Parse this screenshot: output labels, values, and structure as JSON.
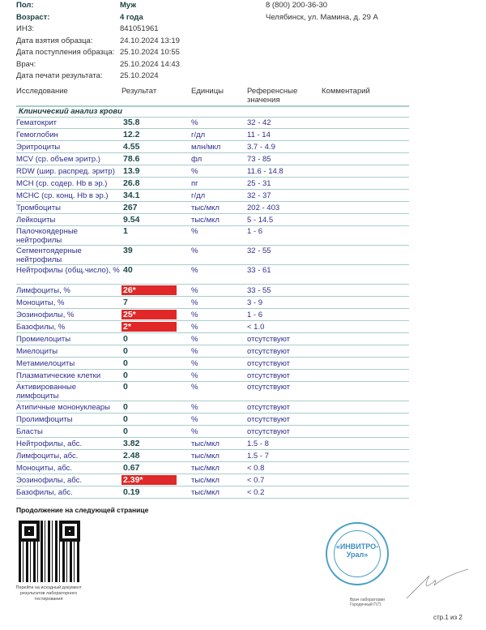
{
  "patient": [
    {
      "k": "Пол:",
      "v": "Муж",
      "bold": true
    },
    {
      "k": "Возраст:",
      "v": "4 года",
      "bold": true
    },
    {
      "k": "ИНЗ:",
      "v": "841051961"
    },
    {
      "k": "Дата взятия образца:",
      "v": "24.10.2024 13:19"
    },
    {
      "k": "Дата поступления образца:",
      "v": "25.10.2024 10:55"
    },
    {
      "k": "Врач:",
      "v": "25.10.2024 14:43"
    },
    {
      "k": "Дата печати результата:",
      "v": "25.10.2024"
    }
  ],
  "contact": {
    "phone": "8 (800) 200-36-30",
    "address": "Челябинск, ул. Мамина, д. 29 А"
  },
  "table": {
    "headers": {
      "test": "Исследование",
      "result": "Результат",
      "units": "Единицы",
      "ref": "Референсные значения",
      "comment": "Комментарий"
    },
    "section": "Клинический анализ крови",
    "flag_color": "#e02828",
    "rows": [
      {
        "name": "Гематокрит",
        "value": "35.8",
        "unit": "%",
        "ref": "32 - 42"
      },
      {
        "name": "Гемоглобин",
        "value": "12.2",
        "unit": "г/дл",
        "ref": "11 - 14"
      },
      {
        "name": "Эритроциты",
        "value": "4.55",
        "unit": "млн/мкл",
        "ref": "3.7 - 4.9"
      },
      {
        "name": "MCV (ср. объем эритр.)",
        "value": "78.6",
        "unit": "фл",
        "ref": "73 - 85"
      },
      {
        "name": "RDW (шир. распред. эритр)",
        "value": "13.9",
        "unit": "%",
        "ref": "11.6 - 14.8"
      },
      {
        "name": "MCH (ср. содер. Hb в эр.)",
        "value": "26.8",
        "unit": "пг",
        "ref": "25 - 31"
      },
      {
        "name": "MCHC (ср. конц. Hb в эр.)",
        "value": "34.1",
        "unit": "г/дл",
        "ref": "32 - 37"
      },
      {
        "name": "Тромбоциты",
        "value": "267",
        "unit": "тыс/мкл",
        "ref": "202 - 403"
      },
      {
        "name": "Лейкоциты",
        "value": "9.54",
        "unit": "тыс/мкл",
        "ref": "5 - 14.5"
      },
      {
        "name": "Палочкоядерные нейтрофилы",
        "value": "1",
        "unit": "%",
        "ref": "1 - 6",
        "wrap": true
      },
      {
        "name": "Сегментоядерные нейтрофилы",
        "value": "39",
        "unit": "%",
        "ref": "32 - 55",
        "wrap": true
      },
      {
        "name": "Нейтрофилы (общ.число), %",
        "value": "40",
        "unit": "%",
        "ref": "33 - 61",
        "wrap": true
      },
      {
        "name": "Лимфоциты, %",
        "value": "26*",
        "unit": "%",
        "ref": "33 - 55",
        "flag": true
      },
      {
        "name": "Моноциты, %",
        "value": "7",
        "unit": "%",
        "ref": "3 - 9"
      },
      {
        "name": "Эозинофилы, %",
        "value": "25*",
        "unit": "%",
        "ref": "1 - 6",
        "flag": true
      },
      {
        "name": "Базофилы, %",
        "value": "2*",
        "unit": "%",
        "ref": "< 1.0",
        "flag": true
      },
      {
        "name": "Промиелоциты",
        "value": "0",
        "unit": "%",
        "ref": "отсутствуют"
      },
      {
        "name": "Миелоциты",
        "value": "0",
        "unit": "%",
        "ref": "отсутствуют"
      },
      {
        "name": "Метамиелоциты",
        "value": "0",
        "unit": "%",
        "ref": "отсутствуют"
      },
      {
        "name": "Плазматические клетки",
        "value": "0",
        "unit": "%",
        "ref": "отсутствуют"
      },
      {
        "name": "Активированные лимфоциты",
        "value": "0",
        "unit": "%",
        "ref": "отсутствуют",
        "wrap": true
      },
      {
        "name": "Атипичные мононуклеары",
        "value": "0",
        "unit": "%",
        "ref": "отсутствуют"
      },
      {
        "name": "Пролимфоциты",
        "value": "0",
        "unit": "%",
        "ref": "отсутствуют"
      },
      {
        "name": "Бласты",
        "value": "0",
        "unit": "%",
        "ref": "отсутствуют"
      },
      {
        "name": "Нейтрофилы, абс.",
        "value": "3.82",
        "unit": "тыс/мкл",
        "ref": "1.5 - 8"
      },
      {
        "name": "Лимфоциты, абс.",
        "value": "2.48",
        "unit": "тыс/мкл",
        "ref": "1.5 - 7"
      },
      {
        "name": "Моноциты, абс.",
        "value": "0.67",
        "unit": "тыс/мкл",
        "ref": "< 0.8"
      },
      {
        "name": "Эозинофилы, абс.",
        "value": "2.39*",
        "unit": "тыс/мкл",
        "ref": "< 0.7",
        "flag": true
      },
      {
        "name": "Базофилы, абс.",
        "value": "0.19",
        "unit": "тыс/мкл",
        "ref": "< 0.2"
      }
    ]
  },
  "footer": {
    "continued": "Продолжение на следующей странице",
    "qr_caption": "Перейти на исходный документ результатов лабораторного тестирования",
    "stamp_text": "«ИНВИТРО-Урал»",
    "doctor": "Врач лаборатории Городечный П.П.",
    "page": "стр.1 из 2"
  }
}
